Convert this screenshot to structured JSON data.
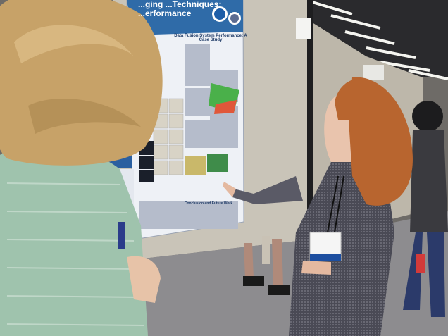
{
  "image": {
    "kind": "photo",
    "subject": "conference poster session"
  },
  "poster": {
    "title_partial": "...ging ...Techniques: ...erformance",
    "section_heading": "Data Fusion System Performance: A Case Study",
    "section_subheading": "Conclusion and Future Work"
  },
  "colors": {
    "poster_header": "#2f6ba8",
    "poster_body": "#eef1f6",
    "board": "#c9c4b8",
    "carpet": "#8d8c8f",
    "hair_left": "#c7a268",
    "hair_right": "#b8652f",
    "sweater_left": "#9fc3ad",
    "dress_right": "#4a4a55"
  }
}
